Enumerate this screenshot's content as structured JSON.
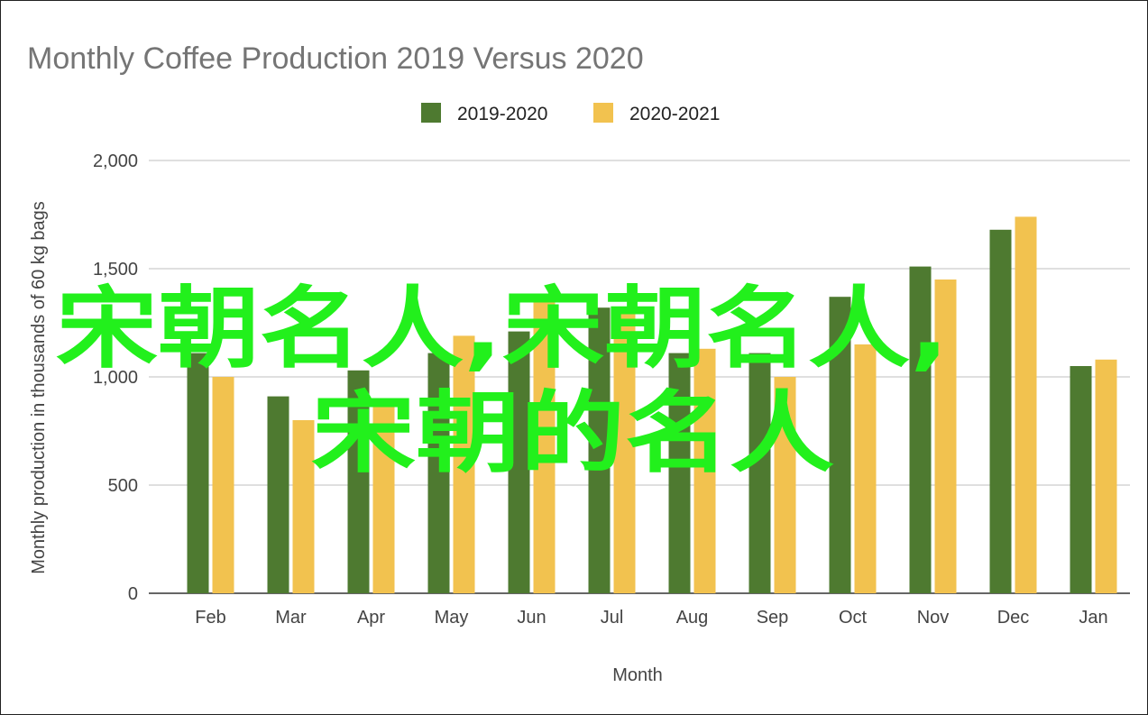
{
  "chart_data": {
    "type": "bar",
    "title": "Monthly Coffee Production 2019 Versus 2020",
    "xlabel": "Month",
    "ylabel": "Monthly production in thousands of 60 kg bags",
    "ylim": [
      0,
      2000
    ],
    "yticks": [
      0,
      500,
      1000,
      1500,
      2000
    ],
    "ytick_labels": [
      "0",
      "500",
      "1,000",
      "1,500",
      "2,000"
    ],
    "grid": true,
    "legend_position": "top",
    "categories": [
      "Feb",
      "Mar",
      "Apr",
      "May",
      "Jun",
      "Jul",
      "Aug",
      "Sep",
      "Oct",
      "Nov",
      "Dec",
      "Jan"
    ],
    "series": [
      {
        "name": "2019-2020",
        "color": "#4e7a30",
        "values": [
          1110,
          910,
          1030,
          1110,
          1210,
          1320,
          1110,
          1110,
          1370,
          1510,
          1680,
          1050
        ]
      },
      {
        "name": "2020-2021",
        "color": "#f2c24f",
        "values": [
          1000,
          800,
          870,
          1190,
          1370,
          1310,
          1130,
          1000,
          1150,
          1450,
          1740,
          1080
        ]
      }
    ]
  },
  "overlay": {
    "line1": "宋朝名人,宋朝名人,",
    "line2": "宋朝的名人",
    "color": "#22f01c"
  }
}
